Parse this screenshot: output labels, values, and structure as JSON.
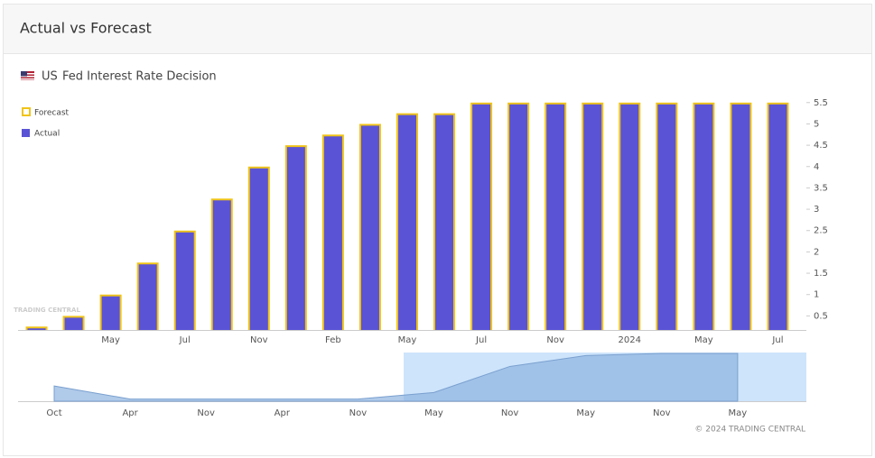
{
  "header": {
    "title": "Actual vs Forecast"
  },
  "chart_data": {
    "type": "bar",
    "subtitle": "US",
    "title": "Fed Interest Rate Decision",
    "categories": [
      null,
      null,
      "May",
      null,
      "Jul",
      null,
      "Nov",
      null,
      "Feb",
      null,
      "May",
      null,
      "Jul",
      null,
      "Nov",
      null,
      "2024",
      null,
      "May",
      null,
      "Jul"
    ],
    "series": [
      {
        "name": "Forecast",
        "color": "#f0c419",
        "values": [
          0.25,
          0.5,
          1,
          1.75,
          2.5,
          3.25,
          4,
          4.5,
          4.75,
          5,
          5.25,
          5.25,
          5.5,
          5.5,
          5.5,
          5.5,
          5.5,
          5.5,
          5.5,
          5.5,
          5.5
        ]
      },
      {
        "name": "Actual",
        "color": "#5a53d6",
        "values": [
          0.25,
          0.5,
          1,
          1.75,
          2.5,
          3.25,
          4,
          4.5,
          4.75,
          5,
          5.25,
          5.25,
          5.5,
          5.5,
          5.5,
          5.5,
          5.5,
          5.5,
          5.5,
          5.5,
          5.5
        ]
      }
    ],
    "ylim": [
      0.17,
      5.58
    ],
    "yticks": [
      0.5,
      1,
      1.5,
      2,
      2.5,
      3,
      3.5,
      4,
      4.5,
      5,
      5.5
    ],
    "watermark": "TRADING CENTRAL"
  },
  "navigator": {
    "type": "area",
    "color": "#8fb3df",
    "categories": [
      "Oct",
      "Apr",
      "Nov",
      "Apr",
      "Nov",
      "May",
      "Nov",
      "May",
      "Nov",
      "May"
    ],
    "values": [
      1.75,
      0.25,
      0.25,
      0.25,
      0.25,
      1,
      4,
      5.25,
      5.5,
      5.5
    ],
    "ylim": [
      0,
      5.5
    ]
  },
  "footer": {
    "copyright": "© 2024 TRADING CENTRAL"
  }
}
